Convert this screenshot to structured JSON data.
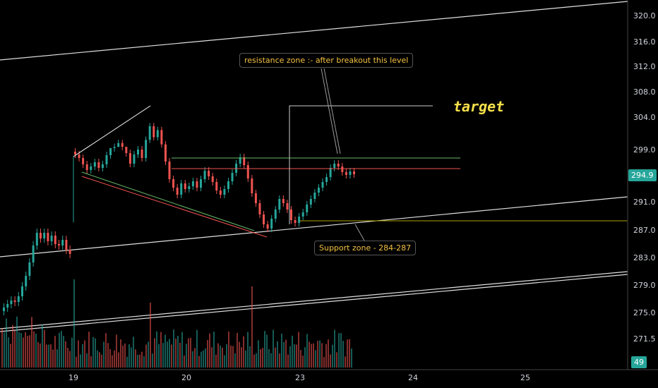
{
  "chart_data": {
    "type": "candlestick",
    "title": "",
    "price_ticks": [
      "320.0",
      "316.0",
      "312.0",
      "308.0",
      "304.0",
      "299.0",
      "291.0",
      "287.0",
      "283.0",
      "279.0",
      "275.0",
      "271.5"
    ],
    "time_ticks": [
      "19",
      "20",
      "23",
      "24",
      "25"
    ],
    "last_price": "294.9",
    "volume_label": "49",
    "annotations": {
      "resistance": "resistance zone :- after breakout this level",
      "support": "Support zone - 284-287",
      "target": "target"
    },
    "close_series": [
      297.7,
      297.2,
      296.3,
      295.5,
      296.0,
      296.6,
      295.8,
      296.3,
      297.6,
      298.6,
      299.4,
      300.0,
      298.8,
      297.9,
      296.4,
      297.7,
      298.4,
      297.2,
      300.5,
      302.6,
      300.9,
      302.0,
      299.8,
      296.7,
      294.2,
      293.0,
      292.0,
      293.6,
      292.8,
      293.2,
      293.9,
      293.0,
      294.2,
      295.4,
      294.6,
      293.8,
      292.6,
      292.0,
      292.8,
      293.9,
      295.1,
      296.4,
      297.3,
      296.2,
      294.3,
      292.2,
      290.8,
      289.2,
      287.8,
      287.2,
      288.6,
      289.9,
      291.4,
      290.8,
      289.9,
      288.4,
      288.0,
      288.9,
      289.5,
      290.6,
      291.4,
      292.3,
      293.0,
      293.8,
      294.5,
      295.8,
      296.4,
      296.0,
      295.2,
      294.8,
      295.3,
      294.9
    ],
    "early_series": [
      276.0,
      276.5,
      277.0,
      276.8,
      277.6,
      279.0,
      280.5,
      282.4,
      284.8,
      286.6,
      285.8,
      286.6,
      285.4,
      286.2,
      285.0,
      284.8,
      285.6,
      284.2,
      283.6
    ]
  },
  "colors": {
    "up": "#26a69a",
    "down": "#ef5350",
    "badge_price": "#26a69a",
    "badge_volume": "#26a69a"
  }
}
